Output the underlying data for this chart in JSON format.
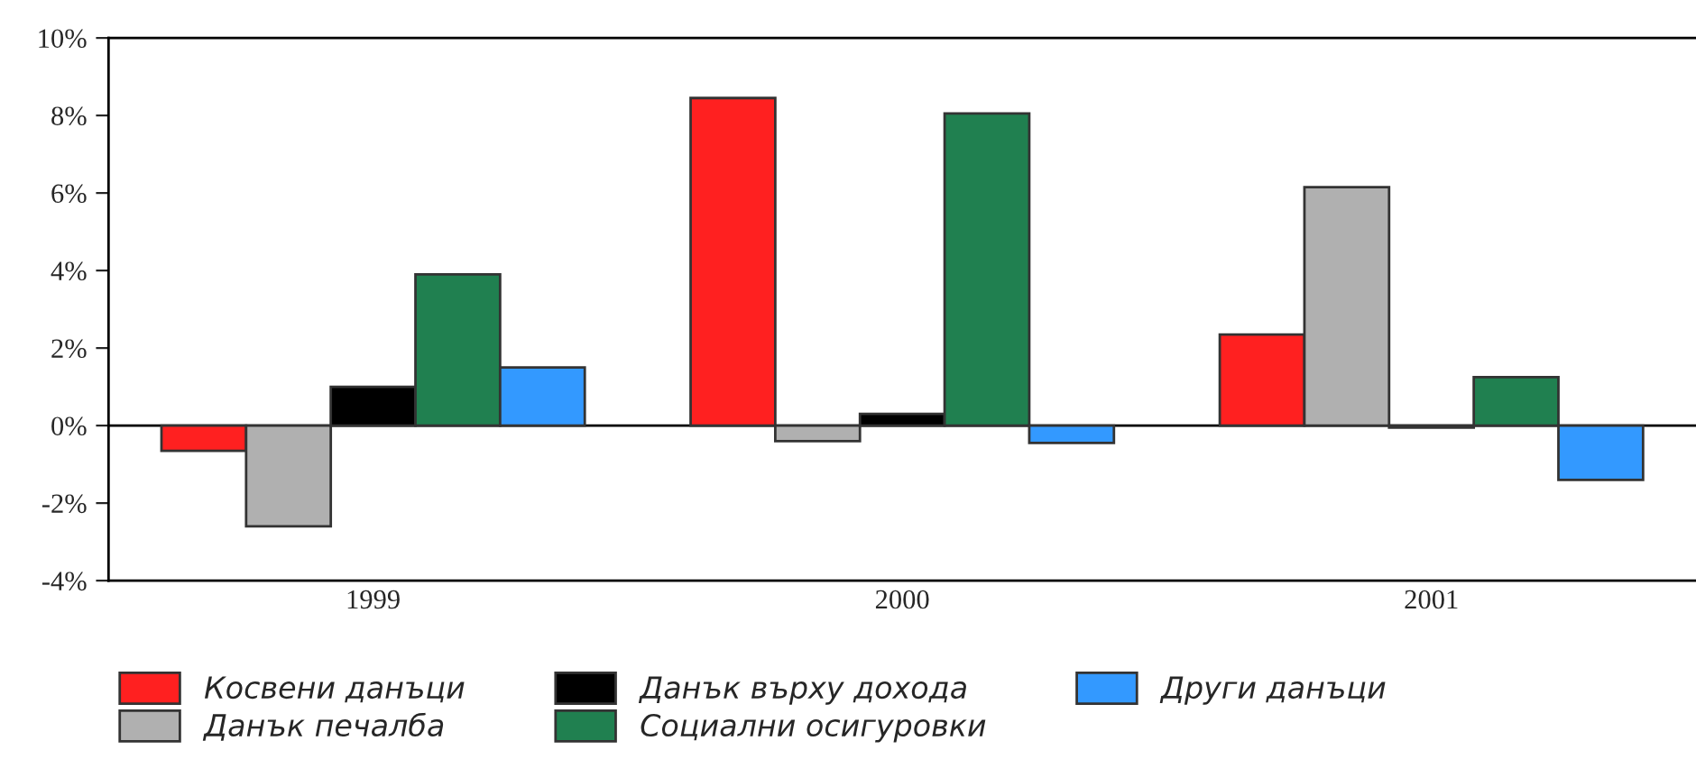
{
  "chart_data": {
    "type": "bar",
    "categories": [
      "1999",
      "2000",
      "2001"
    ],
    "series": [
      {
        "name": "Косвени данъци",
        "color": "#ff2020",
        "values": [
          -0.65,
          8.45,
          2.35
        ]
      },
      {
        "name": "Данък печалба",
        "color": "#b0b0b0",
        "values": [
          -2.6,
          -0.4,
          6.15
        ]
      },
      {
        "name": "Данък върху дохода",
        "color": "#000000",
        "values": [
          1.0,
          0.3,
          -0.05
        ]
      },
      {
        "name": "Социални осигуровки",
        "color": "#208050",
        "values": [
          3.9,
          8.05,
          1.25
        ]
      },
      {
        "name": "Други данъци",
        "color": "#3399ff",
        "values": [
          1.5,
          -0.45,
          -1.4
        ]
      }
    ],
    "ylim": [
      -4,
      10
    ],
    "yticks": [
      {
        "value": -4,
        "label": "-4%"
      },
      {
        "value": -2,
        "label": "-2%"
      },
      {
        "value": 0,
        "label": "0%"
      },
      {
        "value": 2,
        "label": "2%"
      },
      {
        "value": 4,
        "label": "4%"
      },
      {
        "value": 6,
        "label": "6%"
      },
      {
        "value": 8,
        "label": "8%"
      },
      {
        "value": 10,
        "label": "10%"
      }
    ],
    "ref_lines": [
      {
        "axis": "y",
        "value": 0,
        "color": "#000000"
      }
    ],
    "grid": false,
    "legend": "bottom"
  }
}
